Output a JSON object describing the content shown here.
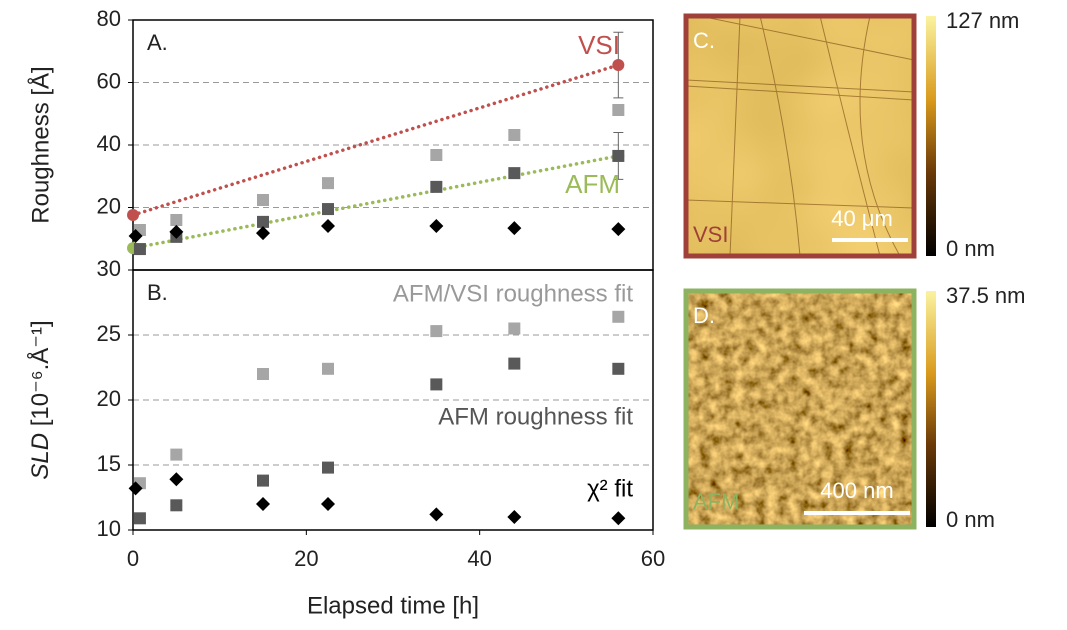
{
  "chart_data": [
    {
      "type": "scatter",
      "panel_label": "A.",
      "y_label": "Roughness [Å]",
      "xlim": [
        0,
        60
      ],
      "ylim": [
        0,
        80
      ],
      "yticks": [
        20,
        40,
        60,
        80
      ],
      "grid": true,
      "series": [
        {
          "name": "VSI",
          "color": "#c0504d",
          "marker": "circle",
          "line": "dotted",
          "x": [
            0,
            56
          ],
          "values": [
            17.6,
            65.6
          ],
          "errors": [
            null,
            10.5
          ]
        },
        {
          "name": "AFM",
          "color": "#9bbb59",
          "marker": "circle",
          "line": "dotted",
          "x": [
            0,
            56
          ],
          "values": [
            7,
            36.5
          ],
          "errors": [
            null,
            7.5
          ]
        },
        {
          "color": "#a6a6a6",
          "marker": "square",
          "x": [
            0.8,
            5,
            15,
            22.5,
            35,
            44,
            56
          ],
          "values": [
            12.8,
            16,
            22.4,
            27.8,
            36.8,
            43.2,
            51.2
          ]
        },
        {
          "color": "#595959",
          "marker": "square",
          "x": [
            0.8,
            5,
            15,
            22.5,
            35,
            44,
            56
          ],
          "values": [
            6.7,
            10.6,
            15.4,
            19.5,
            26.6,
            31,
            36.5
          ]
        },
        {
          "color": "#000000",
          "marker": "diamond",
          "x": [
            0.3,
            5,
            15,
            22.5,
            35,
            44,
            56
          ],
          "values": [
            10.9,
            12.2,
            11.8,
            14.1,
            14.1,
            13.4,
            13.1
          ]
        }
      ]
    },
    {
      "type": "scatter",
      "panel_label": "B.",
      "y_label": {
        "italic": "SLD",
        "text": " [10⁻⁶.Å⁻¹]"
      },
      "x_label": "Elapsed time [h]",
      "xlim": [
        0,
        60
      ],
      "xticks": [
        0,
        20,
        40,
        60
      ],
      "ylim": [
        10,
        30
      ],
      "yticks": [
        10,
        15,
        20,
        25,
        30
      ],
      "grid": true,
      "series": [
        {
          "name": "AFM/VSI roughness fit",
          "color": "#a6a6a6",
          "marker": "square",
          "x": [
            0.8,
            5,
            15,
            22.5,
            35,
            44,
            56
          ],
          "values": [
            13.6,
            15.8,
            22,
            22.4,
            25.3,
            25.5,
            26.4
          ]
        },
        {
          "name": "AFM roughness fit",
          "color": "#595959",
          "marker": "square",
          "x": [
            0.8,
            5,
            15,
            22.5,
            35,
            44,
            56
          ],
          "values": [
            10.9,
            11.9,
            13.8,
            14.8,
            21.2,
            22.8,
            22.4
          ]
        },
        {
          "name": "χ² fit",
          "color": "#000000",
          "marker": "diamond",
          "x": [
            0.3,
            5,
            15,
            22.5,
            35,
            44,
            56
          ],
          "values": [
            13.2,
            13.9,
            12,
            12,
            11.2,
            11,
            10.9
          ]
        }
      ]
    }
  ],
  "images": [
    {
      "panel": "C.",
      "label": "VSI",
      "scale_bar": "40 μm",
      "colorbar_max": "127 nm",
      "colorbar_min": "0 nm",
      "border_color": "#a0403a"
    },
    {
      "panel": "D.",
      "label": "AFM",
      "scale_bar": "400 nm",
      "colorbar_max": "37.5 nm",
      "colorbar_min": "0 nm",
      "border_color": "#8db360"
    }
  ]
}
